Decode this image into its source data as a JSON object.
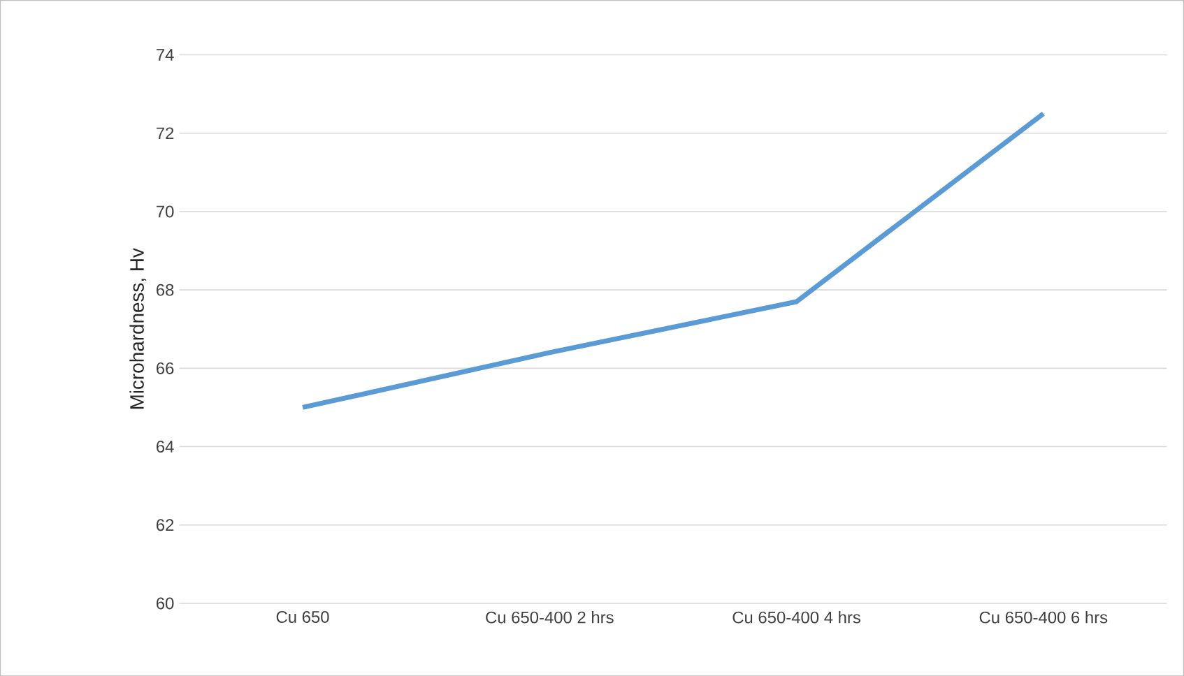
{
  "chart_data": {
    "type": "line",
    "ylabel": "Microhardness, Hv",
    "categories": [
      "Cu 650",
      "Cu 650-400 2 hrs",
      "Cu 650-400 4 hrs",
      "Cu 650-400 6 hrs"
    ],
    "values": [
      65.0,
      66.4,
      67.7,
      72.5
    ],
    "color": "#5b9bd5",
    "ylim": [
      60,
      74
    ],
    "yticks": [
      60,
      62,
      64,
      66,
      68,
      70,
      72,
      74
    ],
    "grid": "y",
    "marker": "none",
    "line_style": "solid"
  }
}
